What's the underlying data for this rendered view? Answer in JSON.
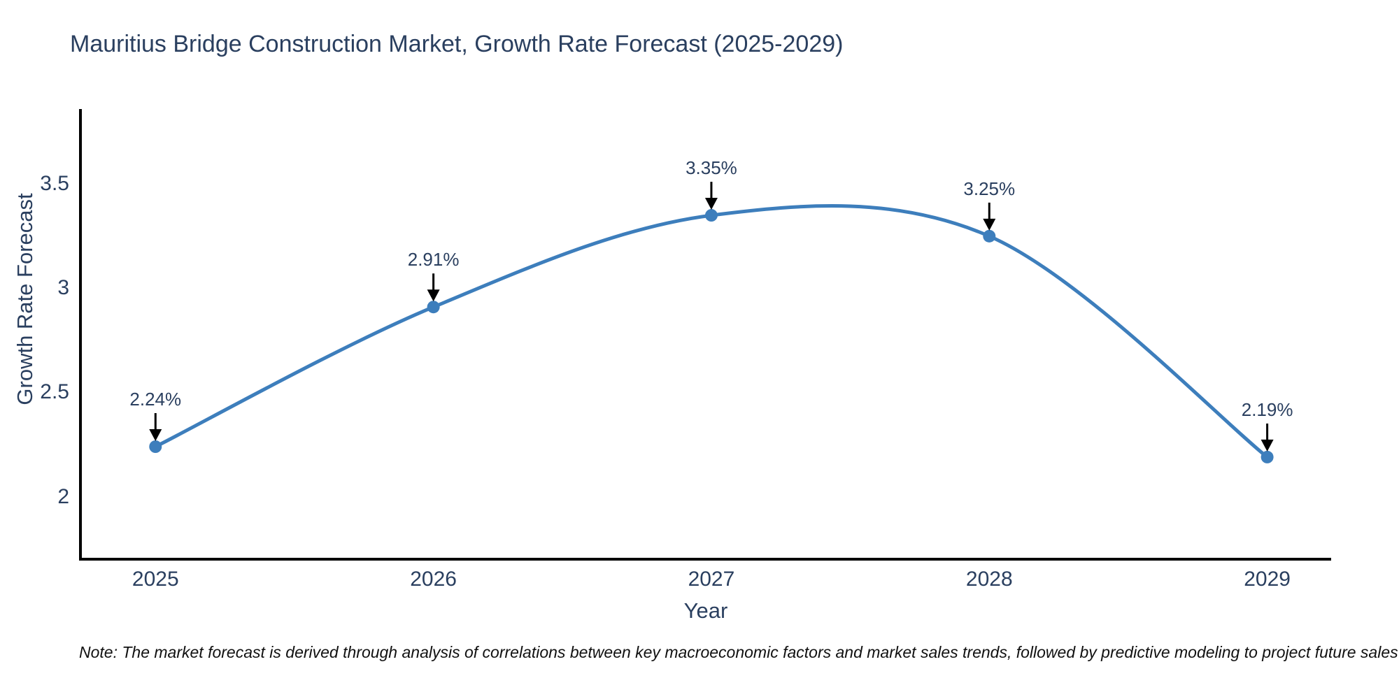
{
  "title": "Mauritius Bridge Construction Market, Growth Rate Forecast (2025-2029)",
  "note": "Note: The market forecast is derived through analysis of correlations between key macroeconomic factors and market sales trends, followed by predictive modeling to project future sales",
  "chart_data": {
    "type": "line",
    "title": "Mauritius Bridge Construction Market, Growth Rate Forecast (2025-2029)",
    "xlabel": "Year",
    "ylabel": "Growth Rate Forecast",
    "x": [
      2025,
      2026,
      2027,
      2028,
      2029
    ],
    "y": [
      2.24,
      2.91,
      3.35,
      3.25,
      2.19
    ],
    "series": [
      {
        "name": "Growth Rate Forecast",
        "values": [
          2.24,
          2.91,
          3.35,
          3.25,
          2.19
        ]
      }
    ],
    "point_labels": [
      "2.24%",
      "2.91%",
      "3.35%",
      "3.25%",
      "2.19%"
    ],
    "x_tick_labels": [
      "2025",
      "2026",
      "2027",
      "2028",
      "2029"
    ],
    "x_tick_values": [
      2025,
      2026,
      2027,
      2028,
      2029
    ],
    "y_tick_labels": [
      "2",
      "2.5",
      "3",
      "3.5"
    ],
    "y_tick_values": [
      2,
      2.5,
      3,
      3.5
    ],
    "xlim": [
      2024.73,
      2029.23
    ],
    "ylim": [
      1.7,
      3.86
    ],
    "line_shape": "spline",
    "grid": false,
    "legend": false,
    "annotations_style": "label above point with black down arrow",
    "colors": {
      "line": "#3d7ebc",
      "marker": "#3d7ebc",
      "axis": "#000000",
      "arrow": "#000000",
      "text": "#2a3f5f",
      "background": "#ffffff"
    }
  }
}
